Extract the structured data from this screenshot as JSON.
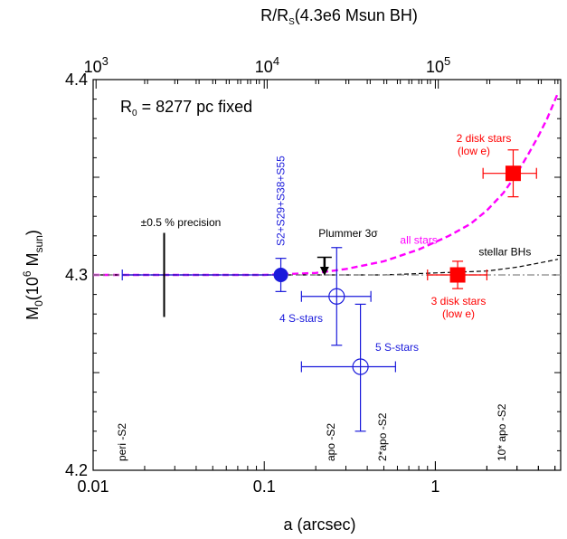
{
  "chart_data": {
    "type": "scatter",
    "title": "",
    "xlabel": "a (arcsec)",
    "ylabel_main": "M",
    "ylabel_sub": "0",
    "ylabel_rest": "(10",
    "ylabel_exp": "6",
    "ylabel_unit": " M",
    "ylabel_unit_sub": "sun",
    "ylabel_close": ")",
    "top_xlabel_main": "R/R",
    "top_xlabel_sub": "S",
    "top_xlabel_rest": "(4.3e6 Msun BH)",
    "x_scale": "log",
    "xlim": [
      0.01,
      5.4
    ],
    "ylim": [
      4.2,
      4.4
    ],
    "x_ticks": [
      {
        "value": 0.01,
        "label": "0.01"
      },
      {
        "value": 0.1,
        "label": "0.1"
      },
      {
        "value": 1,
        "label": "1"
      }
    ],
    "y_ticks": [
      {
        "value": 4.2,
        "label": "4.2"
      },
      {
        "value": 4.3,
        "label": "4.3"
      },
      {
        "value": 4.4,
        "label": "4.4"
      }
    ],
    "top_ticks": [
      {
        "rs": 1000,
        "base": "10",
        "exp": "3"
      },
      {
        "rs": 10000,
        "base": "10",
        "exp": "4"
      },
      {
        "rs": 100000,
        "base": "10",
        "exp": "5"
      }
    ],
    "top_tick_arcsec_per_1000rs": 0.0104,
    "points": [
      {
        "name": "S2+S29+S38+S55",
        "x": 0.125,
        "y": 4.3,
        "x_err": [
          0,
          0
        ],
        "y_err": [
          0.0085,
          0.0085
        ],
        "marker": "filled-circle",
        "color": "#1a1adb",
        "label": "S2+S29+S38+S55"
      },
      {
        "name": "4 S-stars",
        "x": 0.265,
        "y": 4.289,
        "x_err": [
          0.1,
          0.155
        ],
        "y_err": [
          0.025,
          0.025
        ],
        "marker": "open-circle",
        "color": "#1a1adb",
        "label": "4 S-stars"
      },
      {
        "name": "5 S-stars",
        "x": 0.365,
        "y": 4.253,
        "x_err": [
          0.2,
          0.22
        ],
        "y_err": [
          0.033,
          0.032
        ],
        "marker": "open-circle",
        "color": "#1a1adb",
        "label": "5 S-stars"
      },
      {
        "name": "3 disk stars (low e)",
        "x": 1.35,
        "y": 4.3,
        "x_err": [
          0.45,
          0.65
        ],
        "y_err": [
          0.007,
          0.007
        ],
        "marker": "filled-square",
        "color": "#ff0000",
        "label": [
          "3 disk stars",
          "(low e)"
        ]
      },
      {
        "name": "2 disk stars (low e)",
        "x": 2.85,
        "y": 4.352,
        "x_err": [
          0.95,
          1.05
        ],
        "y_err": [
          0.012,
          0.012
        ],
        "marker": "filled-square",
        "color": "#ff0000",
        "label": [
          "2 disk stars",
          "(low e)"
        ]
      },
      {
        "name": "±0.5 % precision",
        "x": 0.026,
        "y": 4.3,
        "x_err": [
          0,
          0
        ],
        "y_err": [
          0.0215,
          0.0215
        ],
        "marker": "none",
        "color": "#000000",
        "label": "±0.5 % precision"
      }
    ],
    "curves": [
      {
        "name": "all stars",
        "color": "#ff00ff",
        "style": "dashed",
        "x": [
          0.01,
          0.1,
          0.2,
          0.3,
          0.5,
          0.8,
          1.2,
          1.6,
          2.0,
          2.5,
          3.0,
          3.5,
          4.0,
          4.5,
          5.2
        ],
        "y": [
          4.3,
          4.3,
          4.301,
          4.303,
          4.307,
          4.313,
          4.32,
          4.326,
          4.333,
          4.342,
          4.352,
          4.362,
          4.371,
          4.38,
          4.393
        ]
      },
      {
        "name": "stellar BHs",
        "color": "#000000",
        "style": "dashed",
        "x": [
          0.01,
          0.1,
          0.5,
          1.0,
          2.0,
          3.0,
          4.0,
          5.2
        ],
        "y": [
          4.3,
          4.3,
          4.3,
          4.301,
          4.302,
          4.304,
          4.306,
          4.308
        ]
      },
      {
        "name": "reference",
        "color": "#888888",
        "style": "dash-dot",
        "x": [
          0.01,
          5.4
        ],
        "y": [
          4.3,
          4.3
        ]
      },
      {
        "name": "blue-range",
        "color": "#1a1adb",
        "style": "solid",
        "x": [
          0.0148,
          0.125
        ],
        "y": [
          4.3,
          4.3
        ]
      }
    ],
    "curve_labels": [
      {
        "text": "all stars",
        "color": "#ff00ff",
        "x": 0.8,
        "y": 4.316
      },
      {
        "text": "stellar BHs",
        "color": "#000000",
        "x": 2.55,
        "y": 4.31
      }
    ],
    "plummer": {
      "label_main": "Plummer 3",
      "label_greek": "σ",
      "x": 0.225,
      "y_top": 4.309,
      "y_bottom": 4.3
    },
    "markers": [
      {
        "text": "peri -S2",
        "x": 0.0148
      },
      {
        "text": "apo -S2",
        "x": 0.245
      },
      {
        "text": "2*apo -S2",
        "x": 0.49
      },
      {
        "text": "10* apo -S2",
        "x": 2.45
      }
    ],
    "annotation": {
      "main": "R",
      "sub": "0",
      "rest": " = 8277 pc fixed"
    },
    "grid": false
  }
}
